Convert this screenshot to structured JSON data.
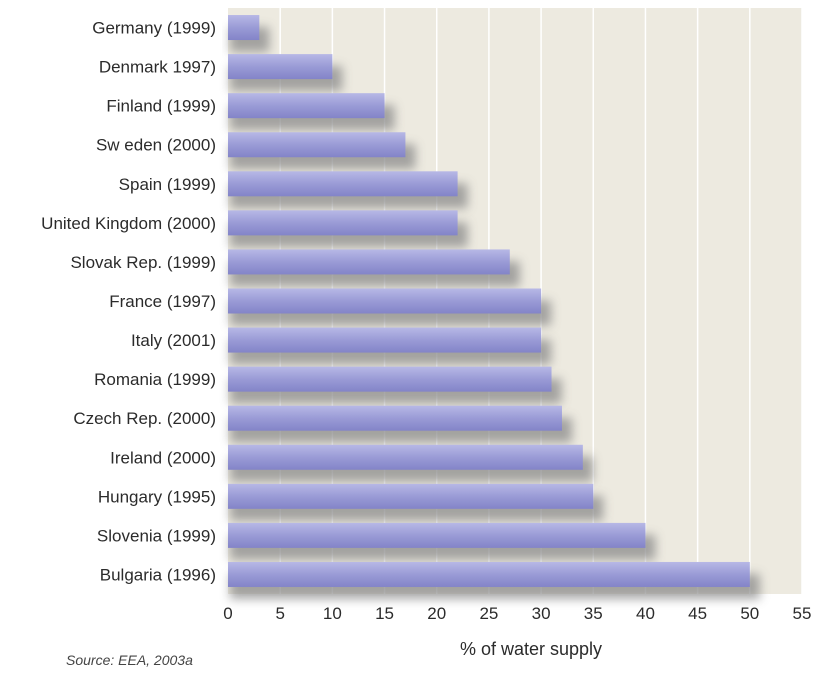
{
  "chart_data": {
    "type": "bar",
    "orientation": "horizontal",
    "categories": [
      "Germany (1999)",
      "Denmark 1997)",
      "Finland (1999)",
      "Sw eden (2000)",
      "Spain (1999)",
      "United Kingdom (2000)",
      "Slovak Rep. (1999)",
      "France (1997)",
      "Italy (2001)",
      "Romania (1999)",
      "Czech Rep. (2000)",
      "Ireland (2000)",
      "Hungary (1995)",
      "Slovenia (1999)",
      "Bulgaria (1996)"
    ],
    "values": [
      3,
      10,
      15,
      17,
      22,
      22,
      27,
      30,
      30,
      31,
      32,
      34,
      35,
      40,
      50
    ],
    "xlabel": "% of water supply",
    "ylabel": "",
    "xlim": [
      0,
      55
    ],
    "xticks": [
      0,
      5,
      10,
      15,
      20,
      25,
      30,
      35,
      40,
      45,
      50,
      55
    ],
    "grid": true,
    "colors": {
      "bar": "#9a9bd6",
      "bar_dark": "#7f80c6",
      "plot_background": "#edeae0",
      "gridline": "#ffffff",
      "shadow": "#8a8a8a"
    }
  },
  "source": "Source: EEA, 2003a"
}
